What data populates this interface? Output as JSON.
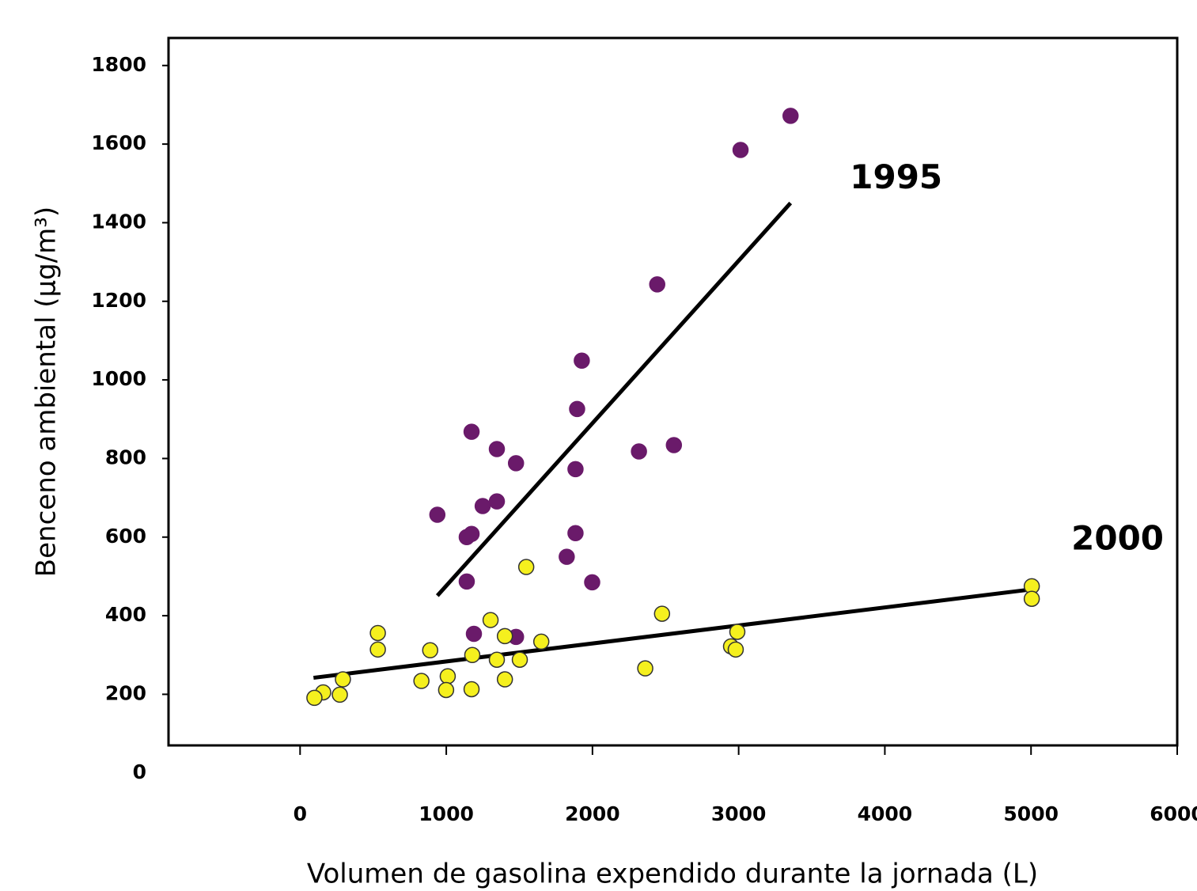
{
  "chart_data": {
    "type": "scatter",
    "x_label": "Volumen de gasolina expendido durante la jornada (L)",
    "y_label": "Benceno ambiental (μg/m³)",
    "xlim": [
      -900,
      6000
    ],
    "ylim": [
      70,
      1870
    ],
    "xticks": [
      0,
      1000,
      2000,
      3000,
      4000,
      5000,
      6000
    ],
    "yticks": [
      0,
      200,
      400,
      600,
      800,
      1000,
      1200,
      1400,
      1600,
      1800
    ],
    "grid": false,
    "series": [
      {
        "name": "1995",
        "color": "#6a1a6a",
        "x": [
          3355,
          3013,
          2443,
          1927,
          1895,
          1173,
          1346,
          1477,
          2318,
          2557,
          1884,
          1249,
          1346,
          939,
          1140,
          1173,
          1884,
          1824,
          1140,
          1998,
          1189,
          1477
        ],
        "values": [
          1672,
          1585,
          1243,
          1049,
          926,
          868,
          824,
          788,
          818,
          834,
          773,
          679,
          691,
          657,
          600,
          608,
          610,
          550,
          487,
          485,
          354,
          346
        ],
        "trend": {
          "x": [
            939,
            3355
          ],
          "values": [
            451,
            1450
          ]
        }
      },
      {
        "name": "2000",
        "color": "#f5f01e",
        "x": [
          5005,
          5005,
          1547,
          2476,
          1303,
          532,
          532,
          890,
          1178,
          1401,
          1650,
          1346,
          1503,
          2991,
          2948,
          2980,
          2361,
          293,
          830,
          1010,
          1401,
          158,
          272,
          98,
          999,
          1173
        ],
        "values": [
          475,
          443,
          524,
          405,
          389,
          356,
          314,
          312,
          300,
          348,
          334,
          288,
          288,
          359,
          322,
          314,
          266,
          238,
          234,
          246,
          238,
          205,
          199,
          191,
          211,
          213
        ],
        "trend": {
          "x": [
            92,
            5005
          ],
          "values": [
            242,
            467
          ]
        }
      }
    ]
  }
}
